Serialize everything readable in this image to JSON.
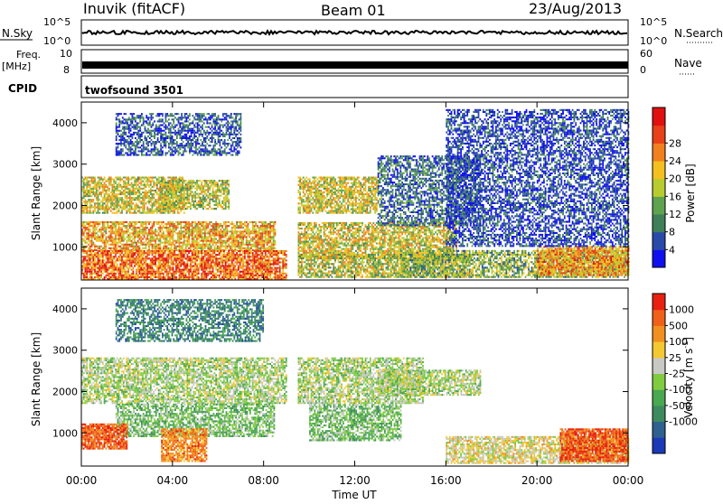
{
  "header": {
    "station": "Inuvik (fitACF)",
    "beam": "Beam 01",
    "date": "23/Aug/2013"
  },
  "top_panels": {
    "nsky_label": "N.Sky",
    "nsky_ticks": [
      "10^5",
      "10^0"
    ],
    "nsearch_label": "N.Search",
    "nsearch_ticks": [
      "10^5",
      "10^0"
    ],
    "freq_label": "Freq.",
    "freq_unit": "[MHz]",
    "freq_ticks": [
      "10",
      "8"
    ],
    "nave_label": "Nave",
    "nave_ticks": [
      "60",
      "0"
    ],
    "cpid_label": "CPID",
    "cpid_value": "twofsound 3501"
  },
  "chart_data": [
    {
      "type": "heatmap",
      "name": "power",
      "ylabel": "Slant Range [km]",
      "yticks": [
        "1000",
        "2000",
        "3000",
        "4000"
      ],
      "ylim": [
        200,
        4500
      ],
      "xlim": [
        0,
        24
      ],
      "colorbar": {
        "label": "Power [dB]",
        "ticks": [
          "4",
          "8",
          "12",
          "16",
          "20",
          "24",
          "28"
        ],
        "colors": [
          "#1010ee",
          "#2a4aaa",
          "#3f7f5a",
          "#5fa34f",
          "#b8cc30",
          "#f4c020",
          "#f08020",
          "#e84018",
          "#e01010"
        ]
      },
      "scatter_bands": [
        {
          "t0": 0.0,
          "t1": 4.5,
          "r0": 1800,
          "r1": 2700,
          "level": 0.55
        },
        {
          "t0": 0.0,
          "t1": 8.5,
          "r0": 900,
          "r1": 1600,
          "level": 0.65
        },
        {
          "t0": 0.0,
          "t1": 9.0,
          "r0": 200,
          "r1": 900,
          "level": 0.8
        },
        {
          "t0": 3.5,
          "t1": 6.5,
          "r0": 1900,
          "r1": 2600,
          "level": 0.5
        },
        {
          "t0": 9.5,
          "t1": 13.0,
          "r0": 1800,
          "r1": 2700,
          "level": 0.55
        },
        {
          "t0": 9.5,
          "t1": 16.5,
          "r0": 700,
          "r1": 1600,
          "level": 0.55
        },
        {
          "t0": 9.5,
          "t1": 17.0,
          "r0": 250,
          "r1": 800,
          "level": 0.5
        },
        {
          "t0": 13.0,
          "t1": 17.5,
          "r0": 1500,
          "r1": 3200,
          "level": 0.2
        },
        {
          "t0": 14.0,
          "t1": 24.0,
          "r0": 250,
          "r1": 900,
          "level": 0.4
        },
        {
          "t0": 20.0,
          "t1": 24.0,
          "r0": 300,
          "r1": 1000,
          "level": 0.7
        },
        {
          "t0": 1.5,
          "t1": 7.0,
          "r0": 3200,
          "r1": 4200,
          "level": 0.15
        },
        {
          "t0": 16.0,
          "t1": 24.0,
          "r0": 1000,
          "r1": 4300,
          "level": 0.1
        }
      ]
    },
    {
      "type": "heatmap",
      "name": "velocity",
      "ylabel": "Slant Range [km]",
      "yticks": [
        "1000",
        "2000",
        "3000",
        "4000"
      ],
      "ylim": [
        200,
        4500
      ],
      "xlim": [
        0,
        24
      ],
      "xlabel": "Time UT",
      "xticks": [
        "00:00",
        "04:00",
        "08:00",
        "12:00",
        "16:00",
        "20:00",
        "00:00"
      ],
      "colorbar": {
        "label": "Velocity [m s^-1]",
        "ticks": [
          "1000",
          "500",
          "100",
          "25",
          "-25",
          "-100",
          "-500",
          "-1000"
        ],
        "colors": [
          "#1a3ab8",
          "#2e6090",
          "#3e8a60",
          "#4aa850",
          "#80cc40",
          "#c8c8c4",
          "#f4c830",
          "#f09020",
          "#f06018",
          "#e82010"
        ]
      },
      "scatter_bands": [
        {
          "t0": 0.0,
          "t1": 9.0,
          "r0": 1700,
          "r1": 2800,
          "level": 0.5
        },
        {
          "t0": 1.5,
          "t1": 8.5,
          "r0": 900,
          "r1": 1700,
          "level": 0.4
        },
        {
          "t0": 0.0,
          "t1": 2.0,
          "r0": 600,
          "r1": 1200,
          "level": 0.9
        },
        {
          "t0": 3.5,
          "t1": 5.5,
          "r0": 300,
          "r1": 1100,
          "level": 0.8
        },
        {
          "t0": 9.5,
          "t1": 15.0,
          "r0": 1700,
          "r1": 2800,
          "level": 0.5
        },
        {
          "t0": 10.0,
          "t1": 14.0,
          "r0": 800,
          "r1": 1700,
          "level": 0.4
        },
        {
          "t0": 13.0,
          "t1": 17.5,
          "r0": 1900,
          "r1": 2500,
          "level": 0.5
        },
        {
          "t0": 16.0,
          "t1": 24.0,
          "r0": 250,
          "r1": 900,
          "level": 0.6
        },
        {
          "t0": 21.0,
          "t1": 24.0,
          "r0": 300,
          "r1": 1100,
          "level": 0.9
        },
        {
          "t0": 1.5,
          "t1": 8.0,
          "r0": 3200,
          "r1": 4200,
          "level": 0.2
        }
      ]
    }
  ]
}
